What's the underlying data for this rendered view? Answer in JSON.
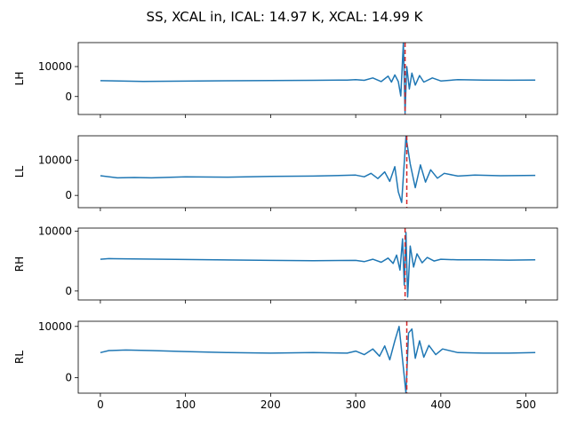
{
  "chart_data": {
    "type": "line",
    "title": "SS, XCAL in, ICAL: 14.97 K, XCAL: 14.99 K",
    "xlim": [
      -26,
      537
    ],
    "xticks": [
      0,
      100,
      200,
      300,
      400,
      500
    ],
    "line_color": "#1f77b4",
    "marker_color": "#d62728",
    "panels": [
      {
        "ylabel": "LH",
        "ylim": [
          -6000,
          18000
        ],
        "yticks": [
          0,
          10000
        ],
        "baseline": 5300,
        "marker_x": 358,
        "series": {
          "x": [
            0,
            50,
            100,
            150,
            200,
            250,
            290,
            300,
            310,
            320,
            330,
            338,
            342,
            346,
            350,
            353,
            356,
            358,
            360,
            363,
            366,
            370,
            375,
            380,
            390,
            400,
            420,
            450,
            480,
            511
          ],
          "y": [
            5300,
            5050,
            5150,
            5250,
            5350,
            5400,
            5500,
            5600,
            5400,
            6200,
            5000,
            6800,
            4800,
            7200,
            5000,
            200,
            18000,
            -5500,
            10000,
            2500,
            7800,
            3800,
            7000,
            4800,
            6200,
            5200,
            5600,
            5500,
            5450,
            5500
          ]
        }
      },
      {
        "ylabel": "LL",
        "ylim": [
          -3500,
          17000
        ],
        "yticks": [
          0,
          10000
        ],
        "baseline": 5600,
        "marker_x": 360,
        "series": {
          "x": [
            0,
            20,
            40,
            60,
            100,
            150,
            200,
            250,
            300,
            310,
            318,
            326,
            334,
            340,
            346,
            350,
            354,
            359,
            364,
            370,
            376,
            382,
            388,
            396,
            404,
            420,
            440,
            470,
            511
          ],
          "y": [
            5600,
            5000,
            5100,
            5000,
            5300,
            5200,
            5400,
            5500,
            5800,
            5300,
            6300,
            4800,
            6700,
            4000,
            8200,
            1000,
            -2000,
            16800,
            9000,
            2200,
            8700,
            3800,
            7300,
            4900,
            6300,
            5500,
            5800,
            5600,
            5700
          ]
        }
      },
      {
        "ylabel": "RH",
        "ylim": [
          -1500,
          10500
        ],
        "yticks": [
          0,
          10000
        ],
        "baseline": 5200,
        "marker_x": 358,
        "series": {
          "x": [
            0,
            10,
            100,
            200,
            250,
            300,
            310,
            320,
            330,
            338,
            344,
            348,
            352,
            355,
            357,
            359,
            361,
            364,
            368,
            372,
            378,
            384,
            392,
            400,
            420,
            450,
            480,
            511
          ],
          "y": [
            5300,
            5400,
            5250,
            5100,
            5050,
            5100,
            4900,
            5300,
            4800,
            5500,
            4600,
            6000,
            3500,
            8700,
            1000,
            9800,
            -1000,
            7500,
            4000,
            6200,
            4700,
            5600,
            5000,
            5300,
            5200,
            5200,
            5150,
            5200
          ]
        }
      },
      {
        "ylabel": "RL",
        "ylim": [
          -3000,
          11000
        ],
        "yticks": [
          0,
          10000
        ],
        "baseline": 5100,
        "marker_x": 360,
        "series": {
          "x": [
            0,
            10,
            30,
            60,
            100,
            150,
            200,
            250,
            290,
            300,
            310,
            320,
            328,
            334,
            340,
            346,
            351,
            355,
            359,
            362,
            366,
            370,
            375,
            380,
            386,
            394,
            402,
            420,
            450,
            480,
            511
          ],
          "y": [
            4900,
            5300,
            5400,
            5300,
            5100,
            4900,
            4800,
            4900,
            4800,
            5200,
            4500,
            5600,
            4200,
            6200,
            3500,
            7200,
            10000,
            3500,
            -3000,
            8700,
            9500,
            3800,
            7200,
            4000,
            6300,
            4500,
            5600,
            4900,
            4800,
            4800,
            4900
          ]
        }
      }
    ]
  }
}
